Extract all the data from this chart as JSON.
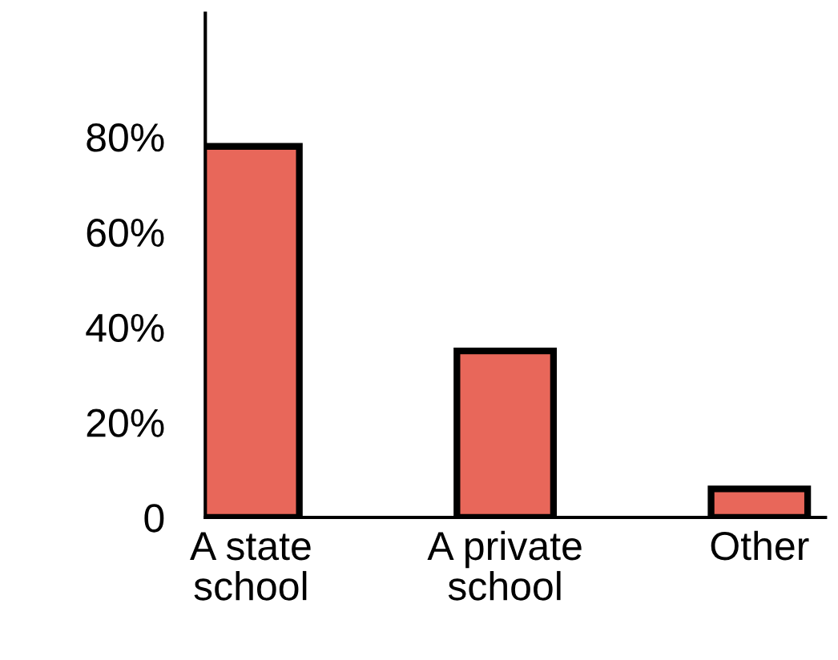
{
  "chart_data": {
    "type": "bar",
    "categories": [
      "A state\nschool",
      "A private\nschool",
      "Other"
    ],
    "values": [
      78,
      35,
      6
    ],
    "color": "#e8675a",
    "ylim": [
      0,
      106
    ],
    "yticks": [
      {
        "value": 0,
        "label": "0"
      },
      {
        "value": 20,
        "label": "20%"
      },
      {
        "value": 40,
        "label": "40%"
      },
      {
        "value": 60,
        "label": "60%"
      },
      {
        "value": 80,
        "label": "80%"
      }
    ],
    "grid": false,
    "legend": false
  }
}
